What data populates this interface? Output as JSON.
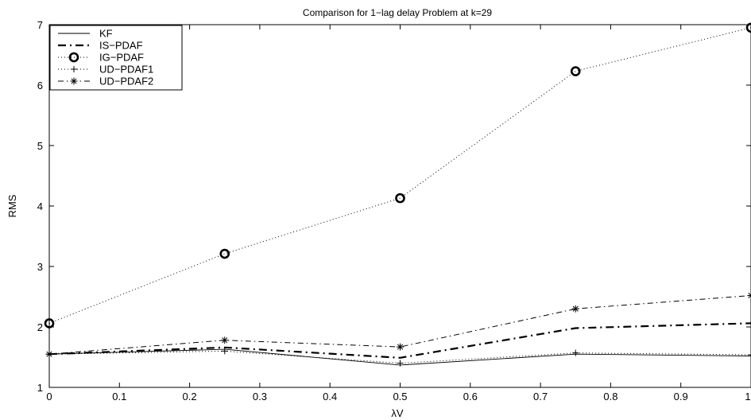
{
  "chart_data": {
    "type": "line",
    "title": "Comparison for 1−lag delay Problem at k=29",
    "xlabel": "λV",
    "ylabel": "RMS",
    "xlim": [
      0,
      1
    ],
    "ylim": [
      1,
      7
    ],
    "xticks": [
      "0",
      "0.1",
      "0.2",
      "0.3",
      "0.4",
      "0.5",
      "0.6",
      "0.7",
      "0.8",
      "0.9",
      "1"
    ],
    "yticks": [
      "1",
      "2",
      "3",
      "4",
      "5",
      "6",
      "7"
    ],
    "grid": false,
    "legend_position": "top-left",
    "x": [
      0,
      0.25,
      0.5,
      0.75,
      1.0
    ],
    "series": [
      {
        "name": "KF",
        "style": "solid",
        "marker": "none",
        "values": [
          1.55,
          1.63,
          1.37,
          1.55,
          1.52
        ]
      },
      {
        "name": "IS−PDAF",
        "style": "thick-dashdot",
        "marker": "none",
        "values": [
          1.55,
          1.66,
          1.49,
          1.98,
          2.06
        ]
      },
      {
        "name": "IG−PDAF",
        "style": "dotted",
        "marker": "circle",
        "values": [
          2.06,
          3.21,
          4.13,
          6.23,
          6.95
        ]
      },
      {
        "name": "UD−PDAF1",
        "style": "dotted",
        "marker": "plus",
        "values": [
          1.55,
          1.6,
          1.4,
          1.57,
          1.54
        ]
      },
      {
        "name": "UD−PDAF2",
        "style": "dashdot",
        "marker": "star",
        "values": [
          1.55,
          1.78,
          1.67,
          2.3,
          2.52
        ]
      }
    ]
  }
}
